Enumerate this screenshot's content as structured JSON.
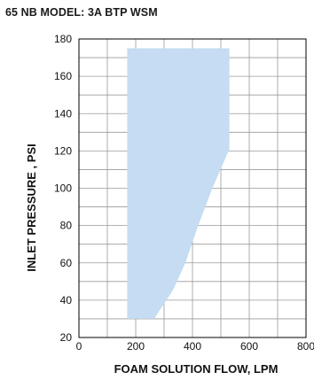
{
  "chart_data": {
    "type": "area",
    "title": "65 NB MODEL: 3A BTP WSM",
    "xlabel": "FOAM SOLUTION FLOW, LPM",
    "ylabel": "INLET PRESSURE , PSI",
    "xlim": [
      0,
      800
    ],
    "ylim": [
      20,
      180
    ],
    "x_ticks": [
      0,
      200,
      400,
      600,
      800
    ],
    "y_ticks": [
      20,
      40,
      60,
      80,
      100,
      120,
      140,
      160,
      180
    ],
    "x_tick_labels": [
      "0",
      "200",
      "400",
      "600",
      "800"
    ],
    "y_tick_labels": [
      "20",
      "40",
      "60",
      "80",
      "100",
      "120",
      "140",
      "160",
      "180"
    ],
    "grid": true,
    "minor_grid_x": [
      100,
      300,
      500,
      700
    ],
    "minor_grid_y": [
      30,
      50,
      70,
      90,
      110,
      130,
      150,
      170
    ],
    "fill_color": "#c5dcf2",
    "series": [
      {
        "points": [
          [
            170,
            175
          ],
          [
            530,
            175
          ],
          [
            530,
            121
          ],
          [
            470,
            100
          ],
          [
            420,
            80
          ],
          [
            375,
            60
          ],
          [
            330,
            45
          ],
          [
            265,
            30
          ],
          [
            170,
            30
          ]
        ]
      }
    ]
  }
}
